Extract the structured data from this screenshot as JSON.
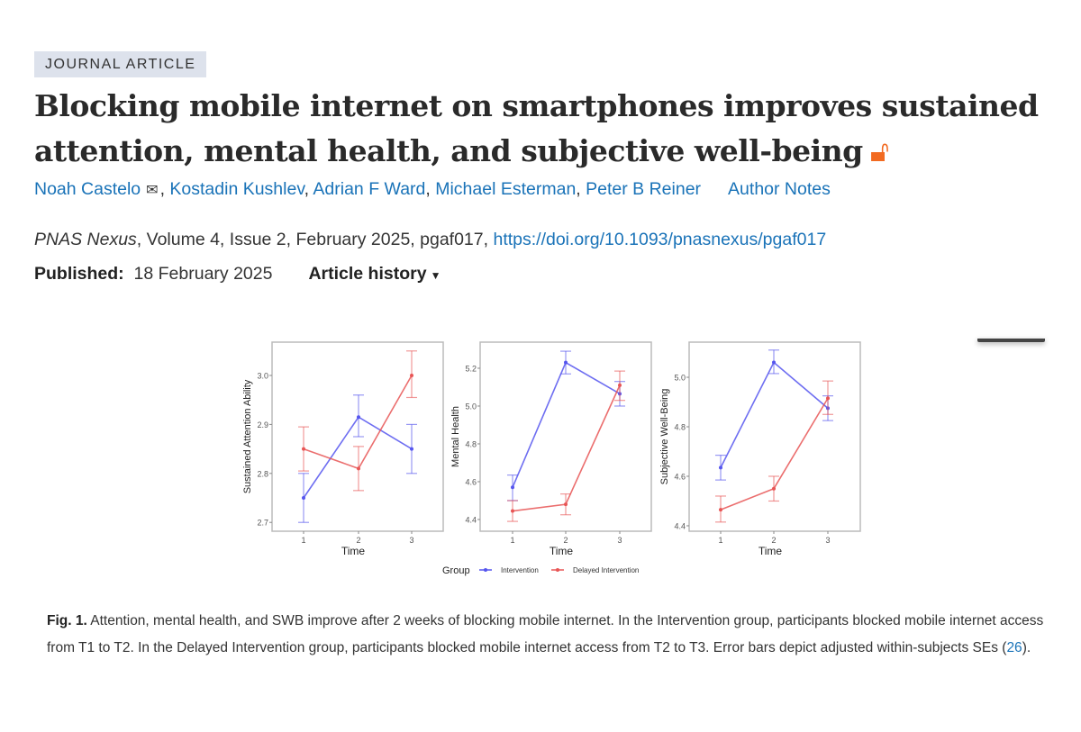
{
  "article": {
    "type_badge": "JOURNAL ARTICLE",
    "title": "Blocking mobile internet on smartphones improves sustained attention, mental health, and subjective well-being",
    "open_access_icon": "open-access-lock-icon",
    "authors": [
      "Noah Castelo",
      "Kostadin Kushlev",
      "Adrian F Ward",
      "Michael Esterman",
      "Peter B Reiner"
    ],
    "author_notes": "Author Notes",
    "journal": "PNAS Nexus",
    "citation_rest": ", Volume 4, Issue 2, February 2025, pgaf017, ",
    "doi": "https://doi.org/10.1093/pnasnexus/pgaf017",
    "published_label": "Published:",
    "published_date": "18 February 2025",
    "article_history": "Article history"
  },
  "figure": {
    "caption_label": "Fig. 1.",
    "caption_text": " Attention, mental health, and SWB improve after 2 weeks of blocking mobile internet. In the Intervention group, participants blocked mobile internet access from T1 to T2. In the Delayed Intervention group, participants blocked mobile internet access from T2 to T3. Error bars depict adjusted within-subjects SEs (",
    "caption_ref": "26",
    "caption_end": ")."
  },
  "chart_data": {
    "type": "line",
    "legend": {
      "title": "Group",
      "placement": "bottom",
      "entries": [
        "Intervention",
        "Delayed Intervention"
      ]
    },
    "colors": {
      "Intervention": "#5555ee",
      "Delayed Intervention": "#e85555"
    },
    "panels": [
      {
        "xlabel": "Time",
        "ylabel": "Sustained Attention Ability",
        "x": [
          1,
          2,
          3
        ],
        "xticks": [
          "1",
          "2",
          "3"
        ],
        "yticks": [
          "2.7",
          "2.8",
          "2.9",
          "3.0"
        ],
        "ylim": [
          2.682,
          3.068
        ],
        "series": [
          {
            "name": "Intervention",
            "values": [
              2.75,
              2.915,
              2.85
            ],
            "lower": [
              2.7,
              2.875,
              2.8
            ],
            "upper": [
              2.8,
              2.96,
              2.9
            ]
          },
          {
            "name": "Delayed Intervention",
            "values": [
              2.85,
              2.81,
              3.0
            ],
            "lower": [
              2.805,
              2.765,
              2.955
            ],
            "upper": [
              2.895,
              2.855,
              3.05
            ]
          }
        ]
      },
      {
        "xlabel": "Time",
        "ylabel": "Mental Health",
        "x": [
          1,
          2,
          3
        ],
        "xticks": [
          "1",
          "2",
          "3"
        ],
        "yticks": [
          "4.4",
          "4.6",
          "4.8",
          "5.0",
          "5.2"
        ],
        "ylim": [
          4.338,
          5.338
        ],
        "series": [
          {
            "name": "Intervention",
            "values": [
              4.57,
              5.23,
              5.065
            ],
            "lower": [
              4.5,
              5.17,
              5.0
            ],
            "upper": [
              4.635,
              5.29,
              5.13
            ]
          },
          {
            "name": "Delayed Intervention",
            "values": [
              4.445,
              4.48,
              5.11
            ],
            "lower": [
              4.39,
              4.425,
              5.03
            ],
            "upper": [
              4.5,
              4.535,
              5.185
            ]
          }
        ]
      },
      {
        "xlabel": "Time",
        "ylabel": "Subjective Well-Being",
        "x": [
          1,
          2,
          3
        ],
        "xticks": [
          "1",
          "2",
          "3"
        ],
        "yticks": [
          "4.4",
          "4.6",
          "4.8",
          "5.0"
        ],
        "ylim": [
          4.378,
          5.142
        ],
        "series": [
          {
            "name": "Intervention",
            "values": [
              4.635,
              5.06,
              4.875
            ],
            "lower": [
              4.585,
              5.015,
              4.825
            ],
            "upper": [
              4.685,
              5.11,
              4.925
            ]
          },
          {
            "name": "Delayed Intervention",
            "values": [
              4.465,
              4.55,
              4.915
            ],
            "lower": [
              4.415,
              4.5,
              4.85
            ],
            "upper": [
              4.52,
              4.6,
              4.985
            ]
          }
        ]
      }
    ]
  }
}
